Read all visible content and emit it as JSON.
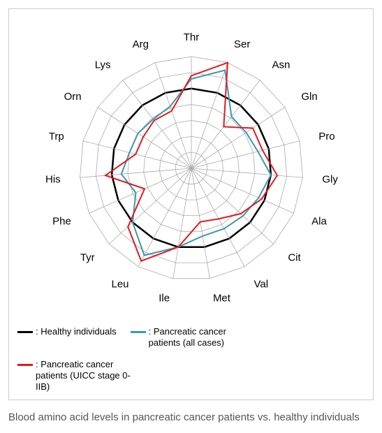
{
  "chart": {
    "type": "radar",
    "background_color": "#ffffff",
    "border_color": "#cccccc",
    "grid_color": "#aaaaaa",
    "grid_rings": 7,
    "ring_bold_index": 5,
    "label_fontsize": 15,
    "label_color": "#000000",
    "axes": [
      "Thr",
      "Ser",
      "Asn",
      "Gln",
      "Pro",
      "Gly",
      "Ala",
      "Cit",
      "Val",
      "Met",
      "Ile",
      "Leu",
      "Tyr",
      "Phe",
      "His",
      "Trp",
      "Orn",
      "Lys",
      "Arg"
    ],
    "series": {
      "healthy": {
        "label": "Healthy individuals",
        "color": "#000000",
        "stroke_width": 2.5,
        "values": [
          5,
          5,
          5,
          5,
          5,
          5,
          5,
          5,
          5,
          5,
          5,
          5,
          5,
          5,
          5,
          5,
          5,
          5,
          5
        ]
      },
      "pc_all": {
        "label": "Pancreatic cancer patients (all cases)",
        "color": "#3b98b3",
        "stroke_width": 2,
        "values": [
          5.6,
          6.5,
          4.1,
          4.1,
          4.3,
          5.0,
          4.6,
          4.4,
          4.3,
          4.3,
          5.0,
          6.2,
          5.0,
          3.8,
          4.4,
          4.0,
          4.0,
          3.9,
          4.1
        ]
      },
      "pc_stage": {
        "label": "Pancreatic cancer patients (UICC stage 0-IIB)",
        "color": "#e41a1c",
        "stroke_width": 2,
        "values": [
          5.8,
          7.0,
          3.3,
          4.6,
          4.6,
          5.4,
          4.8,
          4.2,
          3.6,
          3.4,
          5.0,
          6.6,
          5.4,
          3.2,
          5.4,
          3.6,
          3.6,
          3.8,
          3.8
        ]
      }
    },
    "legend_order": [
      "healthy",
      "pc_all",
      "pc_stage"
    ],
    "legend_prefix": ": "
  },
  "caption": "Blood amino acid levels in pancreatic cancer patients vs. healthy individuals"
}
